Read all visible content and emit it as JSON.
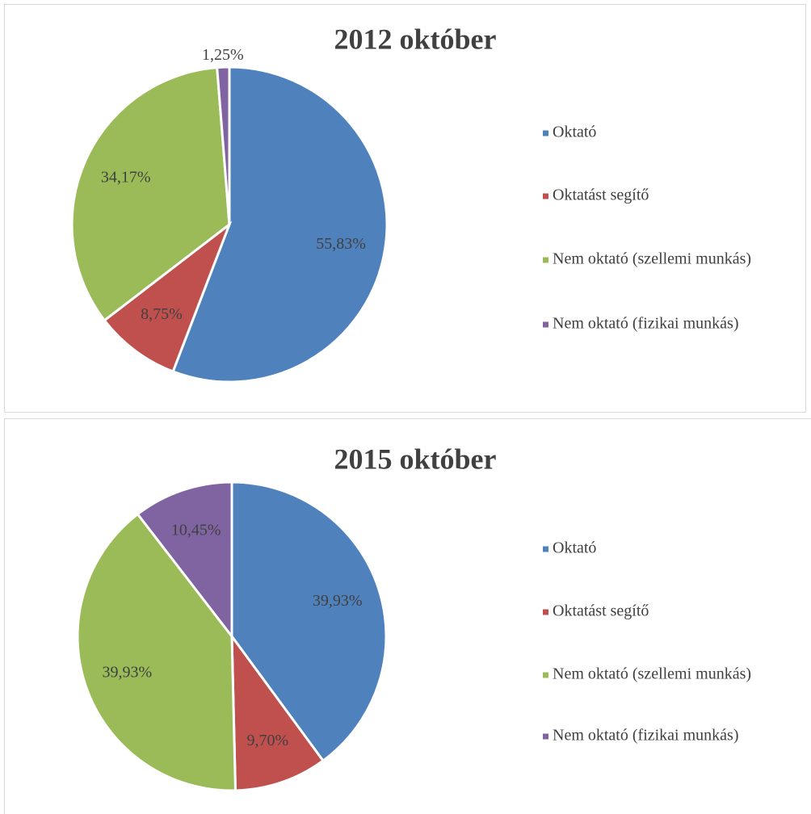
{
  "chart_data": [
    {
      "type": "pie",
      "title": "2012 október",
      "categories": [
        "Oktató",
        "Oktatást segítő",
        "Nem oktató (szellemi munkás)",
        "Nem oktató (fizikai munkás)"
      ],
      "values": [
        55.83,
        8.75,
        34.17,
        1.25
      ],
      "value_labels": [
        "55,83%",
        "8,75%",
        "34,17%",
        "1,25%"
      ],
      "colors": [
        "#4f81bd",
        "#c0504d",
        "#9bbb59",
        "#8064a2"
      ],
      "legend": "right"
    },
    {
      "type": "pie",
      "title": "2015 október",
      "categories": [
        "Oktató",
        "Oktatást segítő",
        "Nem oktató (szellemi munkás)",
        "Nem oktató (fizikai munkás)"
      ],
      "values": [
        39.93,
        9.7,
        39.93,
        10.45
      ],
      "value_labels": [
        "39,93%",
        "9,70%",
        "39,93%",
        "10,45%"
      ],
      "colors": [
        "#4f81bd",
        "#c0504d",
        "#9bbb59",
        "#8064a2"
      ],
      "legend": "right"
    }
  ]
}
